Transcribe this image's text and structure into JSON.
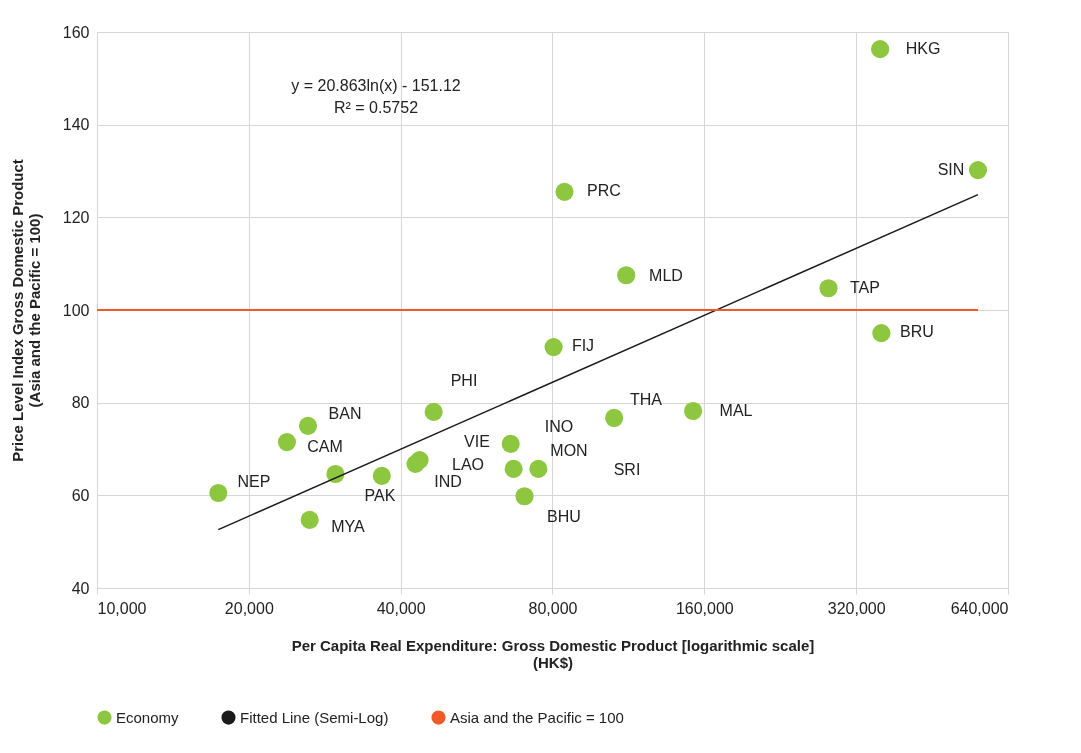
{
  "chart_data": {
    "type": "scatter",
    "xlabel": "Per Capita Real Expenditure: Gross Domestic Product [logarithmic scale]\n(HK$)",
    "ylabel": "Price Level Index Gross Domestic Product\n(Asia and the Pacific = 100)",
    "log": "x",
    "xlim": [
      10000,
      640000
    ],
    "xticks": [
      {
        "value": 10000,
        "label": "10,000"
      },
      {
        "value": 20000,
        "label": "20,000"
      },
      {
        "value": 40000,
        "label": "40,000"
      },
      {
        "value": 80000,
        "label": "80,000"
      },
      {
        "value": 160000,
        "label": "160,000"
      },
      {
        "value": 320000,
        "label": "320,000"
      },
      {
        "value": 640000,
        "label": "640,000"
      }
    ],
    "ylim": [
      40,
      160
    ],
    "yticks": [
      40,
      60,
      80,
      100,
      120,
      140,
      160
    ],
    "grid": true,
    "legend": "bottom",
    "line_style": "solid",
    "series": [
      {
        "name": "Economy",
        "type": "scatter",
        "color": "#8dc63f",
        "x": [
          17400,
          23800,
          26200,
          26400,
          29700,
          36700,
          42800,
          43600,
          46500,
          66100,
          67000,
          75000,
          70400,
          80400,
          84500,
          106000,
          112000,
          152000,
          282000,
          357000,
          359000,
          558000
        ],
        "values": [
          60.5,
          71.5,
          75.0,
          54.7,
          64.6,
          64.2,
          66.8,
          67.6,
          78.0,
          71.1,
          65.7,
          65.7,
          59.8,
          92.0,
          125.5,
          76.7,
          107.5,
          78.2,
          104.7,
          156.3,
          95.0,
          130.2
        ]
      },
      {
        "name": "Fitted Line (Semi-Log)",
        "type": "line",
        "color": "#1a1a1a",
        "x": [
          17400,
          558000
        ],
        "values": [
          52.6,
          124.9
        ]
      },
      {
        "name": "Asia and the Pacific = 100",
        "type": "line",
        "color": "#f05a28",
        "x": [
          10000,
          558000
        ],
        "values": [
          100,
          100
        ]
      }
    ],
    "annotations": [
      "y = 20.863ln(x) - 151.12",
      "R² = 0.5752",
      "HKG",
      "SIN",
      "PRC",
      "MLD",
      "TAP",
      "BRU",
      "FIJ",
      "PHI",
      "THA",
      "MAL",
      "BAN",
      "INO",
      "VIE",
      "CAM",
      "MON",
      "LAO",
      "SRI",
      "NEP",
      "IND",
      "PAK",
      "BHU",
      "MYA"
    ]
  }
}
